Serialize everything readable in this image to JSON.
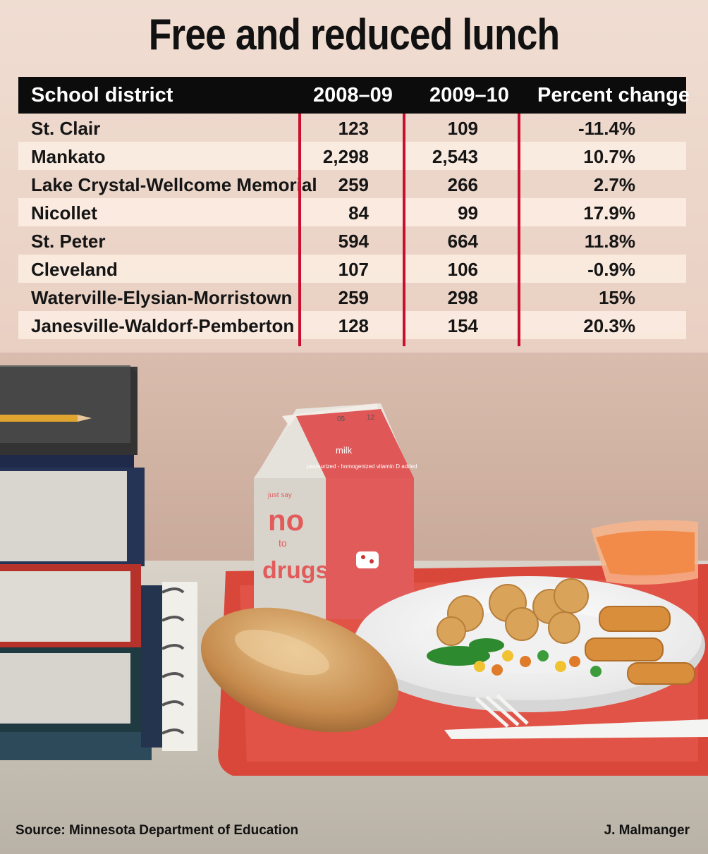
{
  "title": "Free and reduced lunch",
  "chart_data": {
    "type": "table",
    "columns": [
      "School district",
      "2008–09",
      "2009–10",
      "Percent change"
    ],
    "rows": [
      [
        "St. Clair",
        "123",
        "109",
        "-11.4%"
      ],
      [
        "Mankato",
        "2,298",
        "2,543",
        "10.7%"
      ],
      [
        "Lake Crystal-Wellcome Memorial",
        "259",
        "266",
        "2.7%"
      ],
      [
        "Nicollet",
        "84",
        "99",
        "17.9%"
      ],
      [
        "St. Peter",
        "594",
        "664",
        "11.8%"
      ],
      [
        "Cleveland",
        "107",
        "106",
        "-0.9%"
      ],
      [
        "Waterville-Elysian-Morristown",
        "259",
        "298",
        "15%"
      ],
      [
        "Janesville-Waldorf-Pemberton",
        "128",
        "154",
        "20.3%"
      ]
    ]
  },
  "photo": {
    "milk_label": "milk",
    "milk_subtext": "pasteurized - homogenized vitamin D added",
    "carton_small": "just say",
    "carton_no": "no",
    "carton_to": "to",
    "carton_drugs": "drugs!",
    "carton_date_a": "05",
    "carton_date_b": "12"
  },
  "footer": {
    "source": "Source: Minnesota Department of Education",
    "credit": "J. Malmanger"
  },
  "colors": {
    "header": "#0c0c0c",
    "divider": "#c8102e",
    "tray": "#d9473a"
  }
}
